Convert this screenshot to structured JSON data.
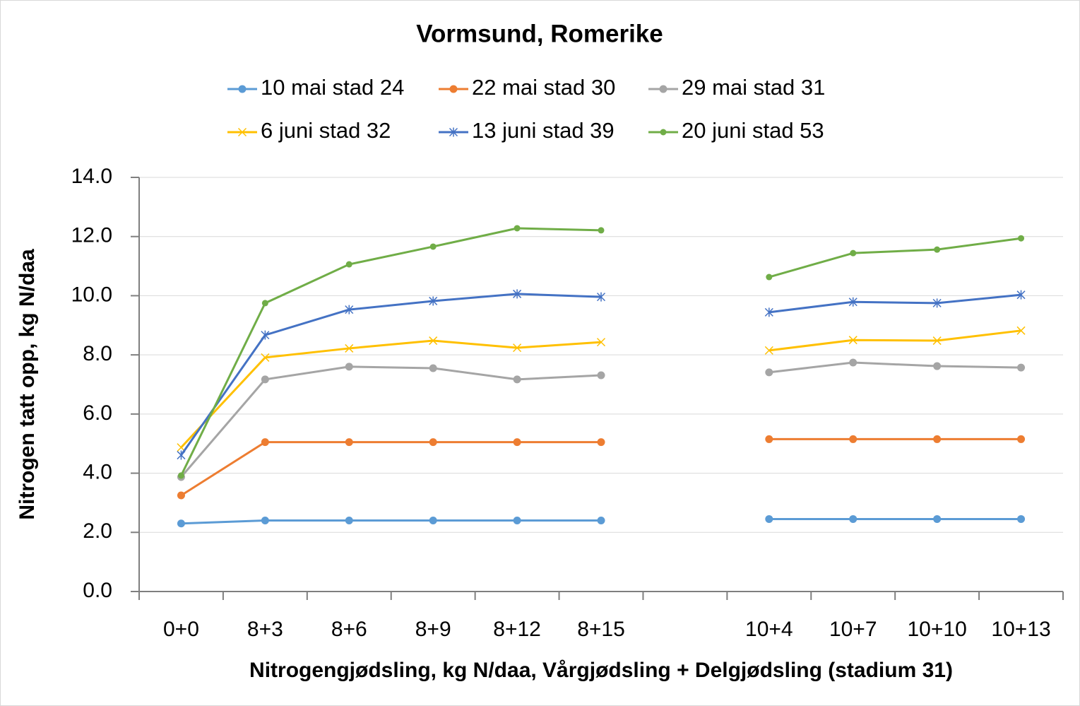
{
  "chart_data": {
    "type": "line",
    "title": "Vormsund, Romerike",
    "x_label": "Nitrogengjødsling, kg N/daa, Vårgjødsling + Delgjødsling (stadium 31)",
    "y_label": "Nitrogen tatt opp, kg N/daa",
    "categories": [
      "0+0",
      "8+3",
      "8+6",
      "8+9",
      "8+12",
      "8+15",
      null,
      "10+4",
      "10+7",
      "10+10",
      "10+13"
    ],
    "series": [
      {
        "name": "10 mai stad 24",
        "color": "#5b9bd5",
        "marker": "circle",
        "values": [
          2.3,
          2.4,
          2.4,
          2.4,
          2.4,
          2.4,
          null,
          2.45,
          2.45,
          2.45,
          2.45
        ]
      },
      {
        "name": "22 mai stad 30",
        "color": "#ed7d31",
        "marker": "circle",
        "values": [
          3.25,
          5.05,
          5.05,
          5.05,
          5.05,
          5.05,
          null,
          5.15,
          5.15,
          5.15,
          5.15
        ]
      },
      {
        "name": "29 mai stad 31",
        "color": "#a5a5a5",
        "marker": "circle",
        "values": [
          3.87,
          7.17,
          7.6,
          7.55,
          7.17,
          7.31,
          null,
          7.41,
          7.74,
          7.62,
          7.57
        ]
      },
      {
        "name": "6 juni stad 32",
        "color": "#ffc000",
        "marker": "x",
        "values": [
          4.87,
          7.91,
          8.22,
          8.48,
          8.24,
          8.43,
          null,
          8.15,
          8.5,
          8.48,
          8.82
        ]
      },
      {
        "name": "13 juni stad 39",
        "color": "#4472c4",
        "marker": "star",
        "values": [
          4.61,
          8.67,
          9.53,
          9.82,
          10.06,
          9.96,
          null,
          9.44,
          9.79,
          9.75,
          10.03
        ]
      },
      {
        "name": "20 juni stad 53",
        "color": "#70ad47",
        "marker": "dot",
        "values": [
          3.92,
          9.75,
          11.06,
          11.66,
          12.28,
          12.21,
          null,
          10.63,
          11.44,
          11.56,
          11.94
        ]
      }
    ],
    "ylim": [
      0,
      14
    ],
    "yticks": [
      {
        "value": 0,
        "label": "0.0"
      },
      {
        "value": 2,
        "label": "2.0"
      },
      {
        "value": 4,
        "label": "4.0"
      },
      {
        "value": 6,
        "label": "6.0"
      },
      {
        "value": 8,
        "label": "8.0"
      },
      {
        "value": 10,
        "label": "10.0"
      },
      {
        "value": 12,
        "label": "12.0"
      },
      {
        "value": 14,
        "label": "14.0"
      }
    ],
    "grid": true,
    "legend": "top"
  }
}
